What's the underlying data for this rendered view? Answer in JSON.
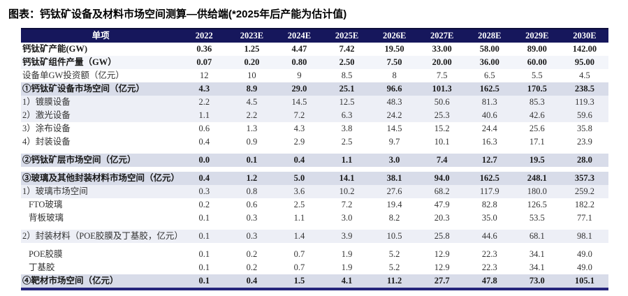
{
  "page_title": "图表：钙钛矿设备及材料市场空间测算—供给端(*2025年后产能为估计值)",
  "colors": {
    "header_bg": "#16175c",
    "header_text": "#ffffff",
    "summary_row_bg": "#d8dce9",
    "light_row_bg": "#edeff6",
    "faint_row_bg": "#f3f5fa",
    "bottom_rule": "#26267c"
  },
  "chart_data": {
    "type": "table",
    "title": "图表：钙钛矿设备及材料市场空间测算—供给端(*2025年后产能为估计值)",
    "columns": [
      "单项",
      "2022",
      "2023E",
      "2024E",
      "2025E",
      "2026E",
      "2027E",
      "2028E",
      "2029E",
      "2030E"
    ],
    "rows": [
      {
        "label": "钙钛矿产能(GW)",
        "style": "bold-plain",
        "values": [
          "0.36",
          "1.25",
          "4.47",
          "7.42",
          "19.50",
          "33.00",
          "58.00",
          "89.00",
          "142.00"
        ]
      },
      {
        "label": "钙钛矿组件产量（GW）",
        "style": "bold-faint",
        "values": [
          "0.07",
          "0.20",
          "0.80",
          "2.50",
          "7.50",
          "20.00",
          "36.00",
          "60.00",
          "95.00"
        ]
      },
      {
        "label": "设备单GW投资额（亿元）",
        "style": "plain",
        "values": [
          "12",
          "10",
          "9",
          "8.5",
          "8",
          "7.5",
          "6.5",
          "5.5",
          "4.5"
        ]
      },
      {
        "label": "①钙钛矿设备市场空间（亿元）",
        "style": "summary",
        "values": [
          "4.3",
          "8.9",
          "29.0",
          "25.1",
          "96.6",
          "101.3",
          "162.5",
          "170.5",
          "238.5"
        ]
      },
      {
        "label": "1）镀膜设备",
        "style": "light",
        "values": [
          "2.2",
          "4.5",
          "14.5",
          "12.5",
          "48.3",
          "50.6",
          "81.3",
          "85.3",
          "119.3"
        ]
      },
      {
        "label": "2）激光设备",
        "style": "light",
        "values": [
          "1.1",
          "2.2",
          "7.2",
          "6.3",
          "24.2",
          "25.3",
          "40.6",
          "42.6",
          "59.6"
        ]
      },
      {
        "label": "3）涂布设备",
        "style": "plain",
        "values": [
          "0.6",
          "1.3",
          "4.3",
          "3.8",
          "14.5",
          "15.2",
          "24.4",
          "25.6",
          "35.8"
        ]
      },
      {
        "label": "4）封装设备",
        "style": "plain",
        "values": [
          "0.4",
          "0.9",
          "2.9",
          "2.5",
          "9.7",
          "10.1",
          "16.3",
          "17.1",
          "23.9"
        ]
      },
      {
        "gap": true
      },
      {
        "label": "②钙钛矿层市场空间（亿元）",
        "style": "summary",
        "values": [
          "0.0",
          "0.1",
          "0.4",
          "1.1",
          "3.0",
          "7.4",
          "12.7",
          "19.5",
          "28.0"
        ]
      },
      {
        "gap": true
      },
      {
        "label": "③玻璃及其他封装材料市场空间（亿元）",
        "style": "summary",
        "values": [
          "0.4",
          "1.2",
          "5.0",
          "14.1",
          "38.1",
          "94.0",
          "162.5",
          "248.1",
          "357.3"
        ]
      },
      {
        "label": "1）玻璃市场空间",
        "style": "light",
        "values": [
          "0.3",
          "0.8",
          "3.6",
          "10.2",
          "27.6",
          "68.2",
          "117.9",
          "180.0",
          "259.2"
        ]
      },
      {
        "label": "FTO玻璃",
        "style": "plain",
        "indent": true,
        "values": [
          "0.2",
          "0.6",
          "2.5",
          "7.2",
          "19.4",
          "47.9",
          "82.8",
          "126.5",
          "182.2"
        ]
      },
      {
        "label": "背板玻璃",
        "style": "plain",
        "indent": true,
        "values": [
          "0.1",
          "0.3",
          "1.1",
          "3.0",
          "8.2",
          "20.3",
          "35.0",
          "53.5",
          "77.1"
        ]
      },
      {
        "gap": true
      },
      {
        "label": "2）封装材料（POE胶膜及丁基胶，亿元）",
        "style": "light",
        "values": [
          "0.1",
          "0.3",
          "1.4",
          "3.9",
          "10.5",
          "25.8",
          "44.6",
          "68.1",
          "98.1"
        ]
      },
      {
        "gap": true
      },
      {
        "label": "POE胶膜",
        "style": "plain",
        "indent": true,
        "values": [
          "0.1",
          "0.2",
          "0.7",
          "1.9",
          "5.2",
          "12.9",
          "22.3",
          "34.1",
          "49.0"
        ]
      },
      {
        "label": "丁基胶",
        "style": "plain",
        "indent": true,
        "values": [
          "0.1",
          "0.2",
          "0.7",
          "1.9",
          "5.2",
          "12.9",
          "22.3",
          "34.1",
          "49.0"
        ]
      },
      {
        "label": "④靶材市场空间（亿元）",
        "style": "summary",
        "last": true,
        "values": [
          "0.1",
          "0.4",
          "1.5",
          "4.1",
          "11.2",
          "27.7",
          "47.8",
          "73.0",
          "105.1"
        ]
      }
    ]
  }
}
